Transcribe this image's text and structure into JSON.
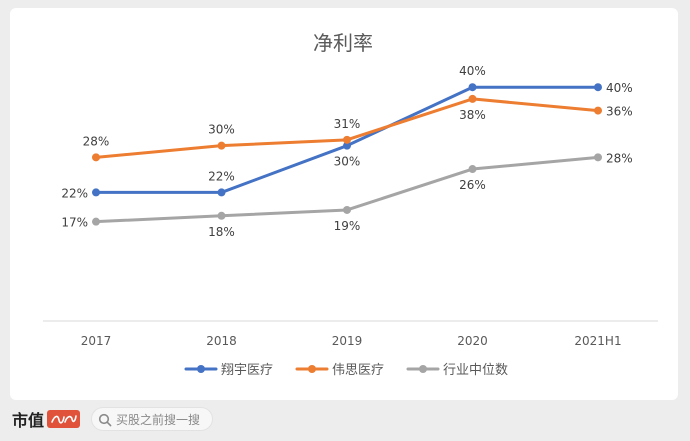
{
  "chart_data": {
    "type": "line",
    "title": "净利率",
    "categories": [
      "2017",
      "2018",
      "2019",
      "2020",
      "2021H1"
    ],
    "ylim": [
      0,
      45
    ],
    "grid": false,
    "legend_position": "bottom",
    "series": [
      {
        "name": "翔宇医疗",
        "color": "#4472c4",
        "values": [
          22,
          22,
          30,
          40,
          40
        ],
        "labels": [
          "22%",
          "22%",
          "30%",
          "40%",
          "40%"
        ],
        "label_pos": [
          "left",
          "above",
          "below",
          "above",
          "right"
        ]
      },
      {
        "name": "伟思医疗",
        "color": "#ed7d31",
        "values": [
          28,
          30,
          31,
          38,
          36
        ],
        "labels": [
          "28%",
          "30%",
          "31%",
          "38%",
          "36%"
        ],
        "label_pos": [
          "above",
          "above",
          "above",
          "below",
          "right"
        ]
      },
      {
        "name": "行业中位数",
        "color": "#a5a5a5",
        "values": [
          17,
          18,
          19,
          26,
          28
        ],
        "labels": [
          "17%",
          "18%",
          "19%",
          "26%",
          "28%"
        ],
        "label_pos": [
          "left",
          "below",
          "below",
          "below",
          "right"
        ]
      }
    ]
  },
  "footer": {
    "brand": "市值",
    "search_placeholder": "买股之前搜一搜",
    "brand_color": "#e0523a"
  }
}
